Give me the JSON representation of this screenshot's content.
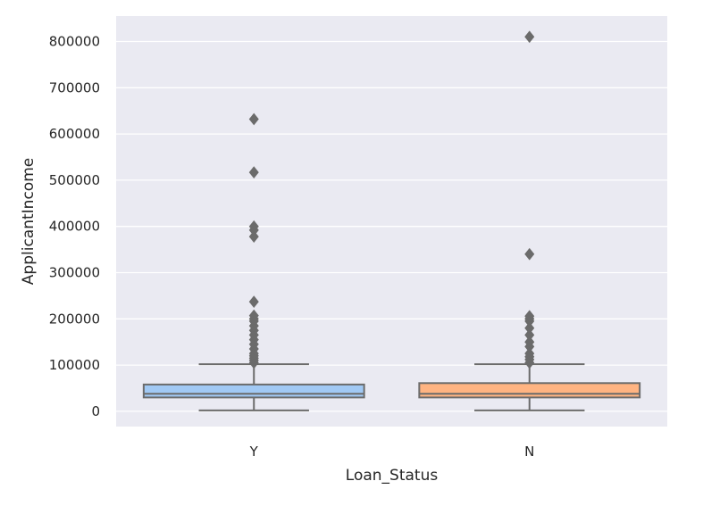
{
  "chart_data": {
    "type": "box",
    "title": "",
    "xlabel": "Loan_Status",
    "ylabel": "ApplicantIncome",
    "categories": [
      "Y",
      "N"
    ],
    "ylim": [
      -33000,
      855000
    ],
    "yticks": [
      0,
      100000,
      200000,
      300000,
      400000,
      500000,
      600000,
      700000,
      800000
    ],
    "ytick_labels": [
      "0",
      "100000",
      "200000",
      "300000",
      "400000",
      "500000",
      "600000",
      "700000",
      "800000"
    ],
    "grid": true,
    "background": "#eaeaf2",
    "boxes": [
      {
        "category": "Y",
        "color": "#a1c9f4",
        "whisker_low": 2000,
        "q1": 30000,
        "median": 38000,
        "q3": 58000,
        "whisker_high": 102000,
        "outliers": [
          105000,
          110000,
          115000,
          120000,
          125000,
          135000,
          145000,
          155000,
          165000,
          175000,
          185000,
          195000,
          200000,
          207000,
          237000,
          378000,
          392000,
          400000,
          517000,
          632000
        ]
      },
      {
        "category": "N",
        "color": "#ffb482",
        "whisker_low": 2000,
        "q1": 30000,
        "median": 38000,
        "q3": 61000,
        "whisker_high": 102000,
        "outliers": [
          105000,
          112000,
          118000,
          125000,
          140000,
          150000,
          165000,
          180000,
          195000,
          200000,
          206000,
          340000,
          810000
        ]
      }
    ]
  }
}
